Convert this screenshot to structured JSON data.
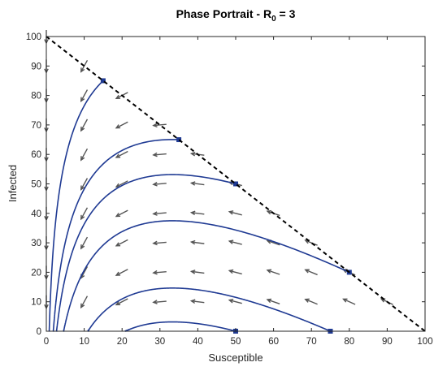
{
  "chart_data": {
    "type": "line",
    "title_main": "Phase Portrait - R",
    "title_sub": "0",
    "title_tail": " = 3",
    "xlabel": "Susceptible",
    "ylabel": "Infected",
    "xlim": [
      0,
      100
    ],
    "ylim": [
      0,
      100
    ],
    "xticks": [
      0,
      10,
      20,
      30,
      40,
      50,
      60,
      70,
      80,
      90,
      100
    ],
    "yticks": [
      0,
      10,
      20,
      30,
      40,
      50,
      60,
      70,
      80,
      90,
      100
    ],
    "xtick_labels": [
      "0",
      "10",
      "20",
      "30",
      "40",
      "50",
      "60",
      "70",
      "80",
      "90",
      "100"
    ],
    "ytick_labels": [
      "0",
      "10",
      "20",
      "30",
      "40",
      "50",
      "60",
      "70",
      "80",
      "90",
      "100"
    ],
    "R0": 3,
    "grid": false,
    "colors": {
      "trajectory": "#1f3a93",
      "arrow": "#555555",
      "diagonal": "#000000"
    },
    "boundary_line": {
      "x": [
        0,
        100
      ],
      "y": [
        100,
        0
      ],
      "style": "dashed"
    },
    "trajectories": [
      {
        "start": [
          15,
          85
        ]
      },
      {
        "start": [
          35,
          65
        ]
      },
      {
        "start": [
          50,
          50
        ]
      },
      {
        "start": [
          80,
          20
        ]
      },
      {
        "start": [
          75,
          0.01
        ]
      },
      {
        "start": [
          50,
          0.01
        ]
      }
    ],
    "vector_field": {
      "x": [
        0,
        10,
        20,
        30,
        40,
        50,
        60,
        70,
        80,
        90,
        100
      ],
      "y": [
        0,
        10,
        20,
        30,
        40,
        50,
        60,
        70,
        80,
        90,
        100
      ]
    }
  }
}
